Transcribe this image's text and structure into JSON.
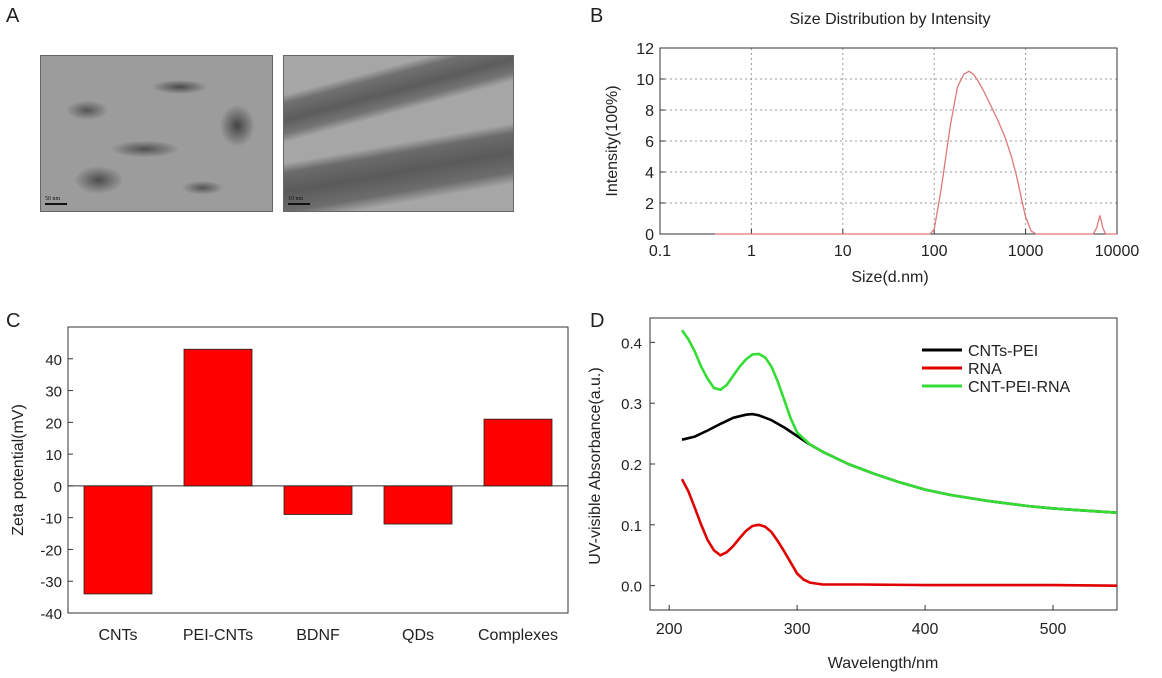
{
  "panels": {
    "A": {
      "letter": "A",
      "images": [
        {
          "scale_label": "50 nm"
        },
        {
          "scale_label": "10 nm"
        }
      ]
    },
    "B": {
      "letter": "B"
    },
    "C": {
      "letter": "C"
    },
    "D": {
      "letter": "D"
    }
  },
  "chart_data": [
    {
      "id": "B",
      "type": "line",
      "title": "Size Distribution by Intensity",
      "xlabel": "Size(d.nm)",
      "ylabel": "Intensity(100%)",
      "x_scale": "log",
      "xlim": [
        0.1,
        10000
      ],
      "ylim": [
        0,
        12
      ],
      "x_ticks": [
        0.1,
        1,
        10,
        100,
        1000,
        10000
      ],
      "x_tick_labels": [
        "0.1",
        "1",
        "10",
        "100",
        "1000",
        "10000"
      ],
      "y_ticks": [
        0,
        2,
        4,
        6,
        8,
        10,
        12
      ],
      "grid": true,
      "line_color": "#e0787a",
      "series": [
        {
          "x": [
            0.4,
            90,
            100,
            120,
            150,
            180,
            210,
            240,
            270,
            300,
            350,
            400,
            500,
            600,
            700,
            800,
            900,
            1000,
            1150,
            1300,
            5500,
            6000,
            6500,
            7000,
            7500,
            10000
          ],
          "values": [
            0,
            0,
            0.3,
            3,
            7,
            9.5,
            10.3,
            10.5,
            10.3,
            9.9,
            9.2,
            8.5,
            7.3,
            6.2,
            5,
            3.7,
            2.3,
            1.1,
            0.2,
            0,
            0,
            0.4,
            1.2,
            0.4,
            0,
            0
          ]
        }
      ]
    },
    {
      "id": "C",
      "type": "bar",
      "ylabel": "Zeta potential(mV)",
      "categories": [
        "CNTs",
        "PEI-CNTs",
        "BDNF",
        "QDs",
        "Complexes"
      ],
      "values": [
        -34,
        43,
        -9,
        -12,
        21
      ],
      "ylim": [
        -40,
        50
      ],
      "y_ticks": [
        -40,
        -30,
        -20,
        -10,
        0,
        10,
        20,
        30,
        40
      ],
      "bar_color": "#ff0000",
      "grid": false
    },
    {
      "id": "D",
      "type": "line",
      "xlabel": "Wavelength/nm",
      "ylabel": "UV-visible Absorbance(a.u.)",
      "xlim": [
        185,
        550
      ],
      "ylim": [
        -0.04,
        0.44
      ],
      "x_ticks": [
        200,
        300,
        400,
        500
      ],
      "y_ticks": [
        0.0,
        0.1,
        0.2,
        0.3,
        0.4
      ],
      "y_tick_labels": [
        "0.0",
        "0.1",
        "0.2",
        "0.3",
        "0.4"
      ],
      "legend_position": "top-right",
      "grid": false,
      "series": [
        {
          "name": "CNTs-PEI",
          "color": "#000000",
          "x": [
            210,
            220,
            230,
            240,
            250,
            260,
            265,
            270,
            280,
            290,
            300,
            310,
            320,
            340,
            360,
            380,
            400,
            420,
            450,
            480,
            500,
            520,
            550
          ],
          "values": [
            0.24,
            0.245,
            0.255,
            0.266,
            0.276,
            0.281,
            0.282,
            0.28,
            0.272,
            0.26,
            0.246,
            0.232,
            0.22,
            0.2,
            0.184,
            0.17,
            0.158,
            0.149,
            0.139,
            0.131,
            0.127,
            0.124,
            0.12
          ]
        },
        {
          "name": "RNA",
          "color": "#e00000",
          "x": [
            210,
            215,
            220,
            225,
            230,
            235,
            240,
            245,
            250,
            255,
            260,
            265,
            270,
            275,
            280,
            285,
            290,
            295,
            300,
            305,
            310,
            320,
            350,
            400,
            450,
            500,
            550
          ],
          "values": [
            0.175,
            0.155,
            0.128,
            0.1,
            0.075,
            0.058,
            0.05,
            0.055,
            0.065,
            0.078,
            0.09,
            0.098,
            0.1,
            0.097,
            0.088,
            0.073,
            0.056,
            0.038,
            0.02,
            0.01,
            0.005,
            0.002,
            0.002,
            0.001,
            0.001,
            0.001,
            0.0
          ]
        },
        {
          "name": "CNT-PEI-RNA",
          "color": "#33dd33",
          "x": [
            210,
            215,
            220,
            225,
            230,
            235,
            240,
            245,
            250,
            255,
            260,
            265,
            270,
            275,
            280,
            285,
            290,
            295,
            300,
            310,
            320,
            340,
            360,
            380,
            400,
            420,
            450,
            480,
            500,
            520,
            550
          ],
          "values": [
            0.42,
            0.405,
            0.385,
            0.36,
            0.34,
            0.325,
            0.322,
            0.33,
            0.345,
            0.36,
            0.372,
            0.38,
            0.381,
            0.375,
            0.36,
            0.335,
            0.305,
            0.275,
            0.252,
            0.232,
            0.22,
            0.2,
            0.184,
            0.17,
            0.158,
            0.149,
            0.139,
            0.131,
            0.127,
            0.124,
            0.12
          ]
        }
      ]
    }
  ]
}
